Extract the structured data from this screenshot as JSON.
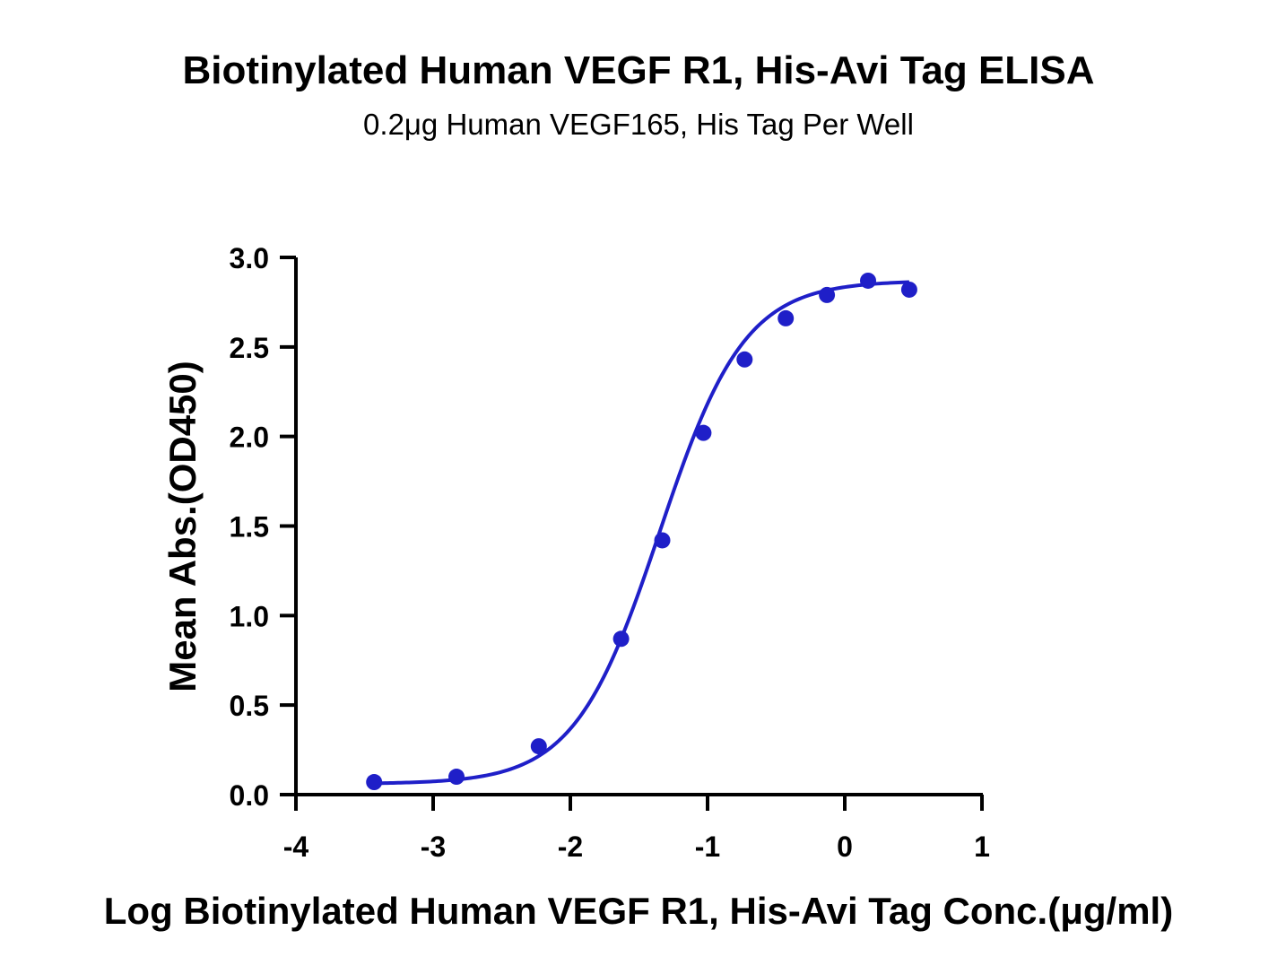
{
  "chart_data": {
    "type": "scatter",
    "title": "Biotinylated Human VEGF R1, His-Avi Tag ELISA",
    "subtitle": "0.2μg Human VEGF165, His Tag Per Well",
    "xlabel": "Log Biotinylated Human VEGF R1, His-Avi Tag Conc.(μg/ml)",
    "ylabel": "Mean Abs.(OD450)",
    "xlim": [
      -4,
      1
    ],
    "ylim": [
      0,
      3
    ],
    "x_ticks": [
      "-4",
      "-3",
      "-2",
      "-1",
      "0",
      "1"
    ],
    "y_ticks": [
      "0.0",
      "0.5",
      "1.0",
      "1.5",
      "2.0",
      "2.5",
      "3.0"
    ],
    "grid": false,
    "color": "#1f1fc8",
    "series": [
      {
        "x": [
          -3.43,
          -2.83,
          -2.23,
          -1.63,
          -1.33,
          -1.03,
          -0.73,
          -0.43,
          -0.13,
          0.17,
          0.47
        ],
        "values": [
          0.07,
          0.1,
          0.27,
          0.87,
          1.42,
          2.02,
          2.43,
          2.66,
          2.79,
          2.87,
          2.82
        ]
      }
    ],
    "fit": {
      "model": "4PL",
      "bottom": 0.06,
      "top": 2.87,
      "log_ec50": -1.35,
      "hill_slope": 1.4
    }
  }
}
